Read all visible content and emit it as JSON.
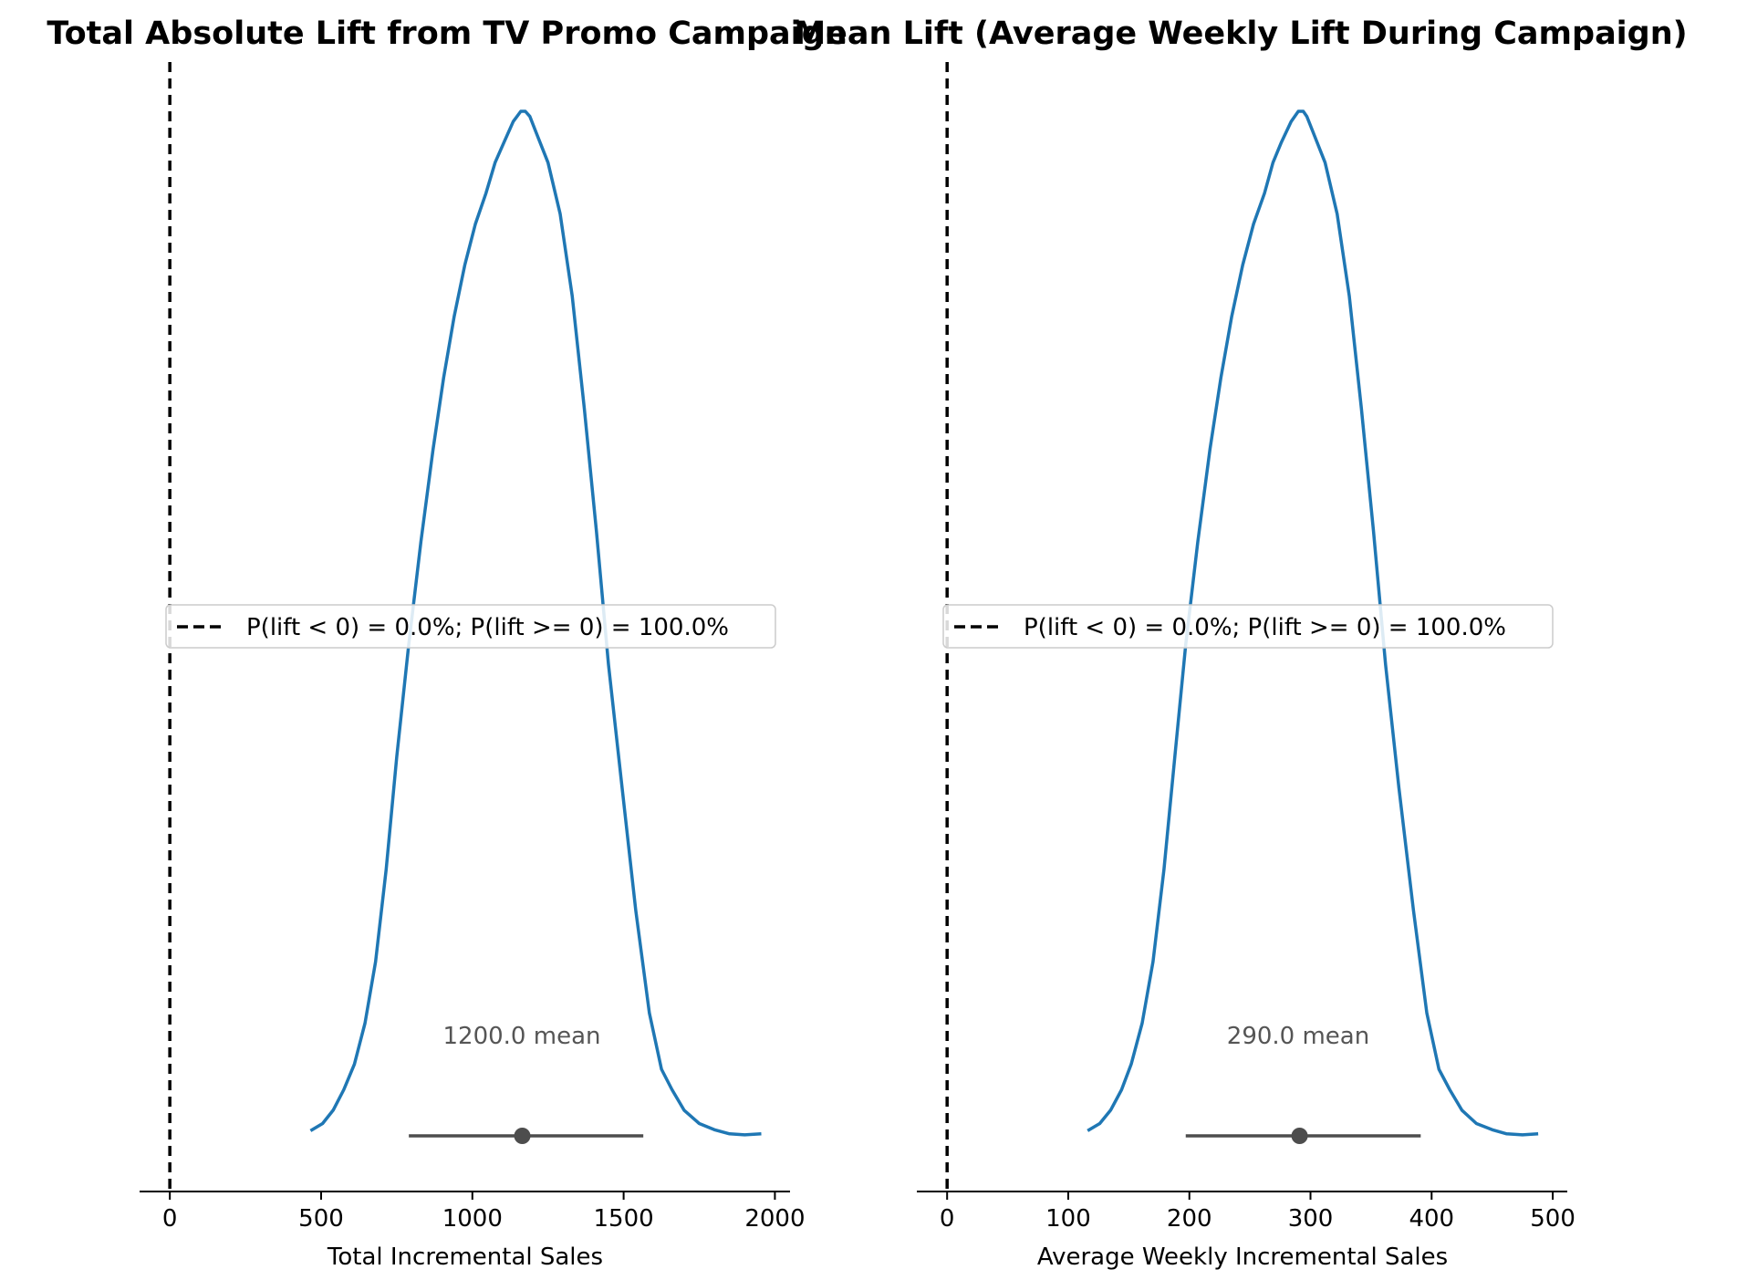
{
  "colors": {
    "kde_line": "#1f77b4",
    "interval": "#4d4d4d",
    "mean_text": "#555555",
    "ref_line": "#000000",
    "axis": "#000000"
  },
  "chart_data": [
    {
      "type": "line",
      "title": "Total Absolute Lift from TV Promo Campaign",
      "xlabel": "Total Incremental Sales",
      "ylabel": "",
      "xlim": [
        -100,
        2050
      ],
      "xticks": [
        0,
        500,
        1000,
        1500,
        2000
      ],
      "xtick_labels": [
        "0",
        "500",
        "1000",
        "1500",
        "2000"
      ],
      "grid": false,
      "legend_position": "center",
      "legend_label": "P(lift < 0) = 0.0%; P(lift >= 0) = 100.0%",
      "reference_line_x": 0,
      "mean": 1165,
      "mean_label": "1200.0 mean",
      "hdi": [
        790,
        1565
      ],
      "series": [
        {
          "x": [
            465,
            505,
            540,
            575,
            610,
            645,
            680,
            715,
            750,
            790,
            830,
            870,
            905,
            940,
            975,
            1010,
            1045,
            1075,
            1105,
            1135,
            1160,
            1175,
            1190,
            1210,
            1250,
            1290,
            1330,
            1370,
            1410,
            1450,
            1495,
            1540,
            1585,
            1625,
            1660,
            1700,
            1750,
            1800,
            1850,
            1900,
            1955
          ],
          "y": [
            0.005,
            0.012,
            0.025,
            0.045,
            0.07,
            0.11,
            0.17,
            0.26,
            0.37,
            0.48,
            0.58,
            0.67,
            0.74,
            0.8,
            0.85,
            0.89,
            0.92,
            0.95,
            0.97,
            0.99,
            1.0,
            1.0,
            0.995,
            0.98,
            0.95,
            0.9,
            0.82,
            0.71,
            0.59,
            0.46,
            0.34,
            0.22,
            0.12,
            0.065,
            0.045,
            0.025,
            0.012,
            0.006,
            0.002,
            0.001,
            0.002
          ]
        }
      ]
    },
    {
      "type": "line",
      "title": "Mean Lift (Average Weekly Lift During Campaign)",
      "xlabel": "Average Weekly Incremental Sales",
      "ylabel": "",
      "xlim": [
        -25,
        512
      ],
      "xticks": [
        0,
        100,
        200,
        300,
        400,
        500
      ],
      "xtick_labels": [
        "0",
        "100",
        "200",
        "300",
        "400",
        "500"
      ],
      "grid": false,
      "legend_position": "center",
      "legend_label": "P(lift < 0) = 0.0%; P(lift >= 0) = 100.0%",
      "reference_line_x": 0,
      "mean": 291,
      "mean_label": "290.0 mean",
      "hdi": [
        197,
        391
      ],
      "series": [
        {
          "x": [
            116,
            126,
            135,
            144,
            152,
            161,
            170,
            179,
            188,
            197,
            207,
            217,
            226,
            235,
            244,
            253,
            262,
            269,
            276,
            284,
            290,
            294,
            297,
            302,
            312,
            322,
            332,
            342,
            352,
            362,
            373,
            385,
            396,
            406,
            415,
            425,
            437,
            450,
            462,
            475,
            488
          ],
          "y": [
            0.005,
            0.012,
            0.025,
            0.045,
            0.07,
            0.11,
            0.17,
            0.26,
            0.37,
            0.48,
            0.58,
            0.67,
            0.74,
            0.8,
            0.85,
            0.89,
            0.92,
            0.95,
            0.97,
            0.99,
            1.0,
            1.0,
            0.995,
            0.98,
            0.95,
            0.9,
            0.82,
            0.71,
            0.59,
            0.46,
            0.34,
            0.22,
            0.12,
            0.065,
            0.045,
            0.025,
            0.012,
            0.006,
            0.002,
            0.001,
            0.002
          ]
        }
      ]
    }
  ]
}
